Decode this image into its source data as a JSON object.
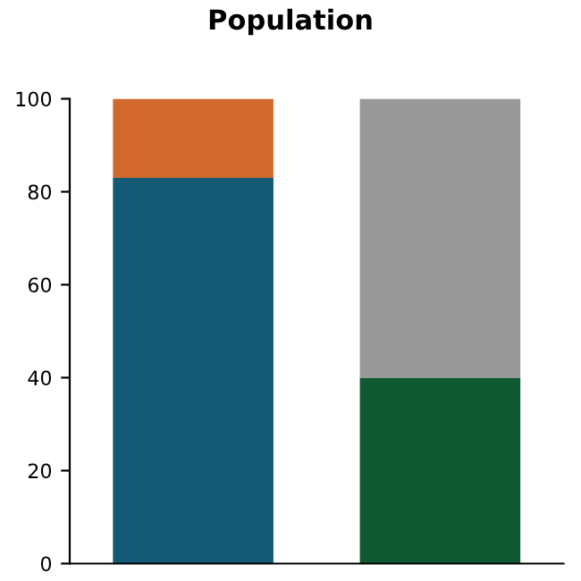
{
  "chart_data": {
    "type": "bar",
    "title": "Population",
    "categories": [
      null,
      null
    ],
    "stacked": true,
    "series": [
      {
        "colors": [
          "#125a75",
          "#0f5a32"
        ],
        "values": [
          83,
          40
        ]
      },
      {
        "colors": [
          "#d2692c",
          "#999999"
        ],
        "values": [
          17,
          60
        ]
      }
    ],
    "ylim": [
      0,
      100
    ],
    "yticks": [
      0,
      20,
      40,
      60,
      80,
      100
    ],
    "grid": false
  }
}
